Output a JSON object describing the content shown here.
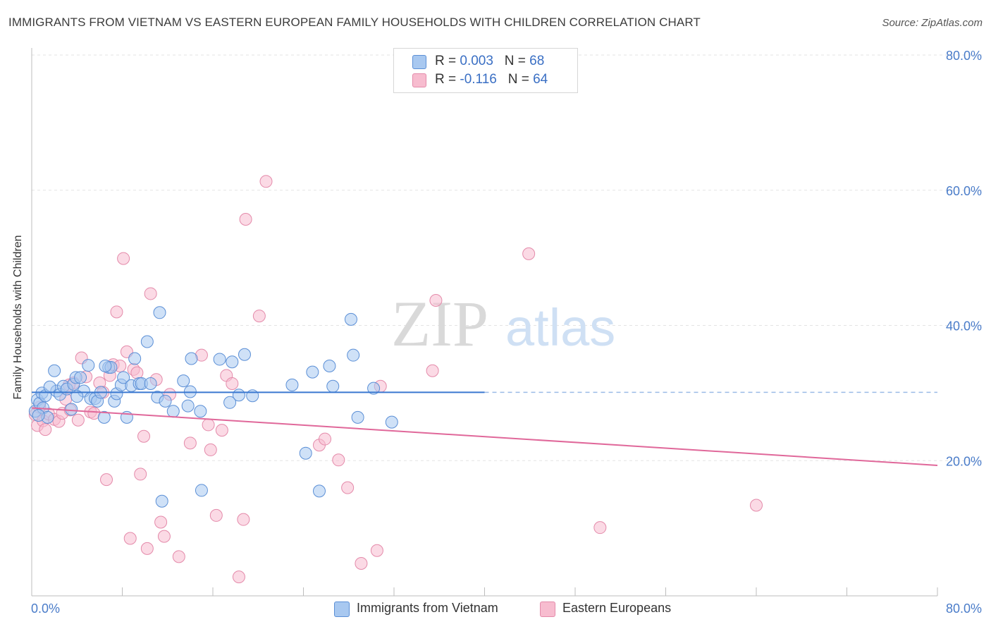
{
  "title": "IMMIGRANTS FROM VIETNAM VS EASTERN EUROPEAN FAMILY HOUSEHOLDS WITH CHILDREN CORRELATION CHART",
  "source": "Source: ZipAtlas.com",
  "watermark": {
    "zip": "ZIP",
    "atlas": "atlas"
  },
  "legend": {
    "rows": [
      {
        "r_label": "R = ",
        "r_value": "0.003",
        "n_label": "N = ",
        "n_value": "68"
      },
      {
        "r_label": "R = ",
        "r_value": "-0.116",
        "n_label": "N = ",
        "n_value": "64"
      }
    ]
  },
  "bottom_legend": [
    "Immigrants from Vietnam",
    "Eastern Europeans"
  ],
  "colors": {
    "blue_fill": "#a8c8f0",
    "blue_stroke": "#5b8fd6",
    "blue_line": "#3a78d0",
    "pink_fill": "#f7bccf",
    "pink_stroke": "#e48aaa",
    "pink_line": "#e0689a",
    "tick_text": "#4a7cc9",
    "grid": "#e3e3e3"
  },
  "chart_data": {
    "type": "scatter",
    "ylabel": "Family Households with Children",
    "xlim": [
      0,
      80
    ],
    "ylim": [
      0,
      80
    ],
    "x_ticks": [
      "0.0%",
      "80.0%"
    ],
    "y_ticks": [
      {
        "value": 20,
        "label": "20.0%"
      },
      {
        "value": 40,
        "label": "40.0%"
      },
      {
        "value": 60,
        "label": "60.0%"
      },
      {
        "value": 80,
        "label": "80.0%"
      }
    ],
    "grid": true,
    "legend_position": "top-center",
    "series": [
      {
        "name": "Immigrants from Vietnam",
        "color": "blue",
        "trend": {
          "x": [
            0,
            40
          ],
          "y": [
            30.1,
            30.1
          ],
          "dashed_to": 80
        },
        "points": [
          [
            0.3,
            27.3
          ],
          [
            0.5,
            29.0
          ],
          [
            0.7,
            28.5
          ],
          [
            0.9,
            30.0
          ],
          [
            1.0,
            27.8
          ],
          [
            1.2,
            29.6
          ],
          [
            1.4,
            26.4
          ],
          [
            2.0,
            33.3
          ],
          [
            2.2,
            30.3
          ],
          [
            2.5,
            29.8
          ],
          [
            2.8,
            31.0
          ],
          [
            3.1,
            30.6
          ],
          [
            3.5,
            27.6
          ],
          [
            3.7,
            31.3
          ],
          [
            3.9,
            32.3
          ],
          [
            4.3,
            32.3
          ],
          [
            4.6,
            30.3
          ],
          [
            5.0,
            34.1
          ],
          [
            5.2,
            29.2
          ],
          [
            5.6,
            29.2
          ],
          [
            5.8,
            28.8
          ],
          [
            6.1,
            30.1
          ],
          [
            6.4,
            26.4
          ],
          [
            6.8,
            33.8
          ],
          [
            7.0,
            33.8
          ],
          [
            7.3,
            28.8
          ],
          [
            7.5,
            29.9
          ],
          [
            7.9,
            31.2
          ],
          [
            8.1,
            32.3
          ],
          [
            8.4,
            26.4
          ],
          [
            8.8,
            31.1
          ],
          [
            9.1,
            35.1
          ],
          [
            9.5,
            31.4
          ],
          [
            9.7,
            31.4
          ],
          [
            10.2,
            37.6
          ],
          [
            10.5,
            31.4
          ],
          [
            11.1,
            29.4
          ],
          [
            11.5,
            14.0
          ],
          [
            11.8,
            28.8
          ],
          [
            12.5,
            27.3
          ],
          [
            13.4,
            31.8
          ],
          [
            13.8,
            28.1
          ],
          [
            14.0,
            30.2
          ],
          [
            14.1,
            35.1
          ],
          [
            14.9,
            27.3
          ],
          [
            15.0,
            15.6
          ],
          [
            16.6,
            35.0
          ],
          [
            17.5,
            28.6
          ],
          [
            17.7,
            34.6
          ],
          [
            18.3,
            29.7
          ],
          [
            18.8,
            35.7
          ],
          [
            19.5,
            29.6
          ],
          [
            11.3,
            41.9
          ],
          [
            23.0,
            31.2
          ],
          [
            24.2,
            21.1
          ],
          [
            24.8,
            33.1
          ],
          [
            25.4,
            15.5
          ],
          [
            26.3,
            34.0
          ],
          [
            26.6,
            31.0
          ],
          [
            28.2,
            40.9
          ],
          [
            28.4,
            35.6
          ],
          [
            28.8,
            26.4
          ],
          [
            30.2,
            30.7
          ],
          [
            31.8,
            25.7
          ],
          [
            0.6,
            26.7
          ],
          [
            1.6,
            30.9
          ],
          [
            6.5,
            34.0
          ],
          [
            4.0,
            29.5
          ]
        ]
      },
      {
        "name": "Eastern Europeans",
        "color": "pink",
        "trend": {
          "x": [
            0,
            80
          ],
          "y": [
            27.8,
            19.3
          ]
        },
        "points": [
          [
            0.3,
            26.8
          ],
          [
            0.5,
            25.2
          ],
          [
            0.7,
            27.9
          ],
          [
            1.0,
            25.9
          ],
          [
            1.2,
            24.6
          ],
          [
            1.5,
            26.9
          ],
          [
            2.0,
            26.1
          ],
          [
            2.4,
            25.8
          ],
          [
            2.7,
            27.0
          ],
          [
            3.0,
            29.1
          ],
          [
            3.4,
            27.5
          ],
          [
            3.7,
            31.5
          ],
          [
            4.1,
            26.0
          ],
          [
            4.4,
            35.2
          ],
          [
            4.8,
            32.4
          ],
          [
            5.2,
            27.2
          ],
          [
            5.5,
            27.0
          ],
          [
            6.0,
            31.5
          ],
          [
            6.3,
            30.1
          ],
          [
            6.6,
            17.2
          ],
          [
            6.9,
            32.6
          ],
          [
            7.2,
            34.2
          ],
          [
            7.5,
            42.0
          ],
          [
            7.8,
            34.0
          ],
          [
            8.1,
            49.9
          ],
          [
            8.4,
            36.1
          ],
          [
            8.7,
            8.5
          ],
          [
            9.0,
            33.5
          ],
          [
            9.3,
            33.0
          ],
          [
            9.6,
            18.0
          ],
          [
            9.9,
            23.6
          ],
          [
            10.2,
            7.0
          ],
          [
            10.5,
            44.7
          ],
          [
            11.0,
            32.0
          ],
          [
            11.4,
            10.9
          ],
          [
            11.7,
            8.8
          ],
          [
            12.2,
            29.8
          ],
          [
            13.0,
            5.8
          ],
          [
            14.0,
            22.6
          ],
          [
            15.0,
            35.6
          ],
          [
            15.6,
            25.3
          ],
          [
            15.8,
            21.6
          ],
          [
            16.3,
            11.9
          ],
          [
            16.8,
            24.5
          ],
          [
            17.2,
            32.6
          ],
          [
            17.7,
            31.4
          ],
          [
            18.3,
            2.8
          ],
          [
            18.7,
            11.3
          ],
          [
            18.9,
            55.7
          ],
          [
            20.1,
            41.4
          ],
          [
            20.7,
            61.3
          ],
          [
            25.4,
            22.3
          ],
          [
            25.9,
            23.2
          ],
          [
            27.1,
            20.1
          ],
          [
            27.9,
            16.0
          ],
          [
            29.1,
            4.8
          ],
          [
            30.5,
            6.7
          ],
          [
            30.8,
            31.0
          ],
          [
            35.4,
            33.3
          ],
          [
            35.7,
            43.7
          ],
          [
            43.9,
            50.6
          ],
          [
            50.2,
            10.1
          ],
          [
            64.0,
            13.4
          ],
          [
            3.3,
            31.2
          ]
        ]
      }
    ]
  }
}
